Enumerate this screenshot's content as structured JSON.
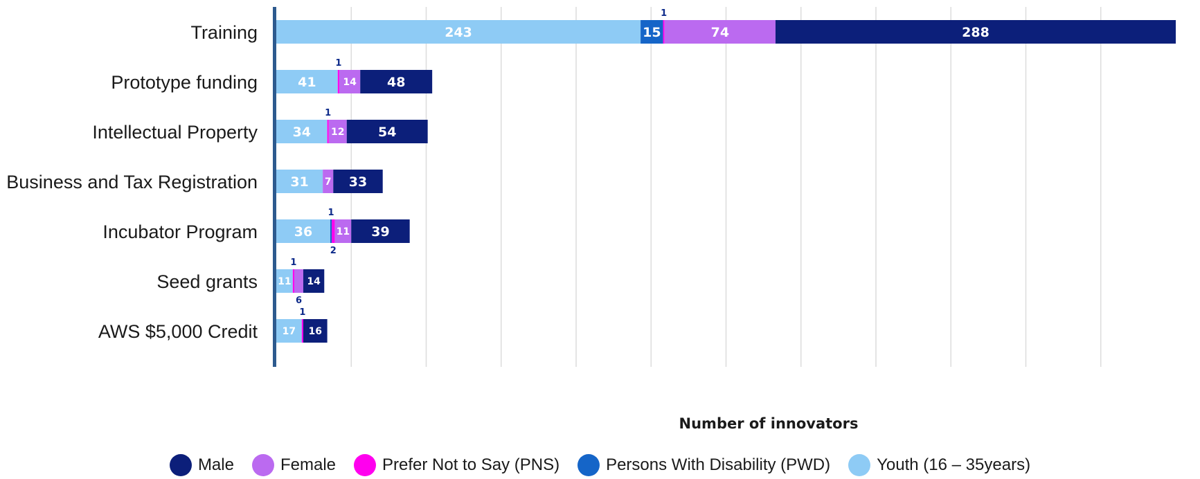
{
  "chart_data": {
    "type": "bar",
    "orientation": "horizontal",
    "stacked": true,
    "categories": [
      "Training",
      "Prototype funding",
      "Intellectual Property",
      "Business and Tax Registration",
      "Incubator Program",
      "Seed grants",
      "AWS $5,000 Credit"
    ],
    "series": [
      {
        "name": "Youth (16 – 35years)",
        "color": "#8ecbf5",
        "values": [
          243,
          41,
          34,
          31,
          36,
          11,
          17
        ]
      },
      {
        "name": "Persons With Disability (PWD)",
        "color": "#1565c8",
        "values": [
          15,
          0,
          0,
          0,
          1,
          0,
          0
        ]
      },
      {
        "name": "Prefer Not to Say (PNS)",
        "color": "#ff00ee",
        "values": [
          1,
          1,
          1,
          0,
          2,
          1,
          1
        ]
      },
      {
        "name": "Female",
        "color": "#bb6af0",
        "values": [
          74,
          14,
          12,
          7,
          11,
          6,
          0
        ]
      },
      {
        "name": "Male",
        "color": "#0c1f7a",
        "values": [
          288,
          48,
          54,
          33,
          39,
          14,
          16
        ]
      }
    ],
    "legend_order": [
      "Male",
      "Female",
      "Prefer Not to Say (PNS)",
      "Persons With Disability (PWD)",
      "Youth (16 – 35years)"
    ],
    "xlabel": "Number of innovators",
    "ylabel": "",
    "xlim": [
      0,
      600
    ],
    "grid": true,
    "legend_position": "bottom"
  }
}
